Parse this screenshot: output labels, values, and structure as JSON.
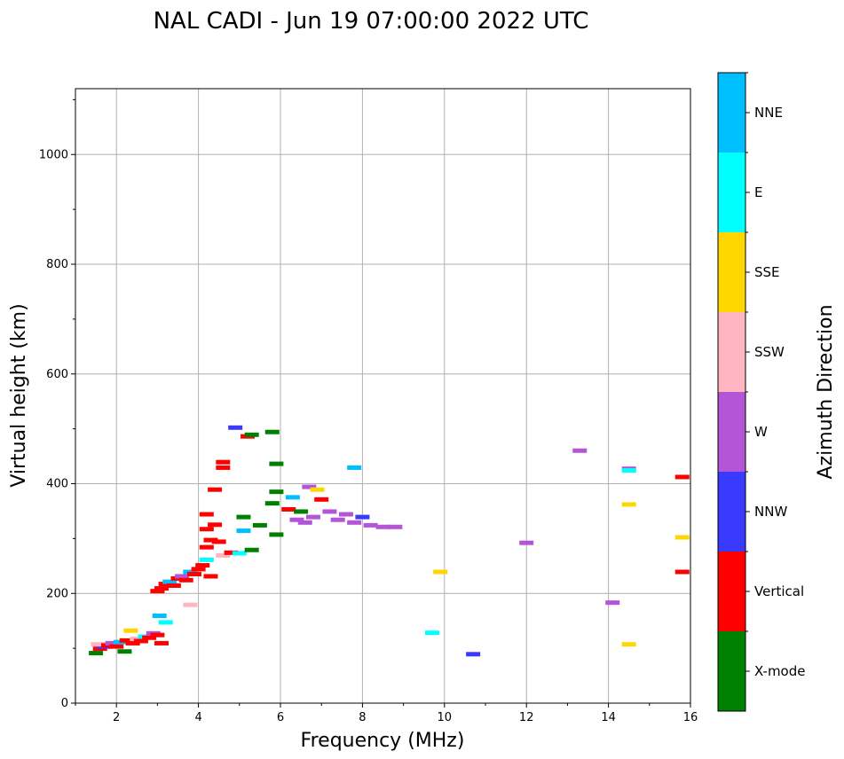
{
  "chart_data": {
    "type": "scatter",
    "title": "NAL CADI - Jun 19 07:00:00 2022 UTC",
    "xlabel": "Frequency (MHz)",
    "ylabel": "Virtual height (km)",
    "xlim": [
      1,
      16
    ],
    "ylim": [
      0,
      1120
    ],
    "xticks": [
      2,
      4,
      6,
      8,
      10,
      12,
      14,
      16
    ],
    "yticks": [
      0,
      200,
      400,
      600,
      800,
      1000
    ],
    "grid": true,
    "colorbar": {
      "label": "Azimuth Direction",
      "categories": [
        {
          "name": "X-mode",
          "color": "#008000"
        },
        {
          "name": "Vertical",
          "color": "#ff0000"
        },
        {
          "name": "NNW",
          "color": "#3a3aff"
        },
        {
          "name": "W",
          "color": "#b455d8"
        },
        {
          "name": "SSW",
          "color": "#ffb6c1"
        },
        {
          "name": "SSE",
          "color": "#ffd700"
        },
        {
          "name": "E",
          "color": "#00ffff"
        },
        {
          "name": "NNE",
          "color": "#00bfff"
        }
      ]
    },
    "points": [
      {
        "f": 1.5,
        "h": 92,
        "c": "X-mode"
      },
      {
        "f": 1.6,
        "h": 100,
        "c": "Vertical"
      },
      {
        "f": 1.7,
        "h": 104,
        "c": "NNW"
      },
      {
        "f": 1.55,
        "h": 108,
        "c": "SSW"
      },
      {
        "f": 1.8,
        "h": 106,
        "c": "Vertical"
      },
      {
        "f": 1.9,
        "h": 110,
        "c": "W"
      },
      {
        "f": 2.0,
        "h": 104,
        "c": "Vertical"
      },
      {
        "f": 2.1,
        "h": 112,
        "c": "NNE"
      },
      {
        "f": 2.2,
        "h": 95,
        "c": "X-mode"
      },
      {
        "f": 2.25,
        "h": 115,
        "c": "Vertical"
      },
      {
        "f": 2.35,
        "h": 133,
        "c": "SSE"
      },
      {
        "f": 2.4,
        "h": 110,
        "c": "Vertical"
      },
      {
        "f": 2.5,
        "h": 118,
        "c": "SSW"
      },
      {
        "f": 2.6,
        "h": 114,
        "c": "Vertical"
      },
      {
        "f": 2.7,
        "h": 122,
        "c": "E"
      },
      {
        "f": 2.8,
        "h": 120,
        "c": "Vertical"
      },
      {
        "f": 2.9,
        "h": 128,
        "c": "W"
      },
      {
        "f": 3.0,
        "h": 125,
        "c": "Vertical"
      },
      {
        "f": 3.05,
        "h": 160,
        "c": "NNE"
      },
      {
        "f": 3.1,
        "h": 110,
        "c": "Vertical"
      },
      {
        "f": 3.2,
        "h": 148,
        "c": "E"
      },
      {
        "f": 3.0,
        "h": 205,
        "c": "Vertical"
      },
      {
        "f": 3.1,
        "h": 210,
        "c": "Vertical"
      },
      {
        "f": 3.2,
        "h": 218,
        "c": "Vertical"
      },
      {
        "f": 3.3,
        "h": 222,
        "c": "NNE"
      },
      {
        "f": 3.4,
        "h": 215,
        "c": "Vertical"
      },
      {
        "f": 3.5,
        "h": 228,
        "c": "Vertical"
      },
      {
        "f": 3.6,
        "h": 232,
        "c": "W"
      },
      {
        "f": 3.7,
        "h": 225,
        "c": "Vertical"
      },
      {
        "f": 3.8,
        "h": 240,
        "c": "NNE"
      },
      {
        "f": 3.9,
        "h": 236,
        "c": "Vertical"
      },
      {
        "f": 4.0,
        "h": 245,
        "c": "Vertical"
      },
      {
        "f": 4.1,
        "h": 252,
        "c": "Vertical"
      },
      {
        "f": 3.8,
        "h": 180,
        "c": "SSW"
      },
      {
        "f": 4.2,
        "h": 262,
        "c": "E"
      },
      {
        "f": 4.3,
        "h": 232,
        "c": "Vertical"
      },
      {
        "f": 4.2,
        "h": 285,
        "c": "Vertical"
      },
      {
        "f": 4.3,
        "h": 298,
        "c": "Vertical"
      },
      {
        "f": 4.2,
        "h": 318,
        "c": "Vertical"
      },
      {
        "f": 4.4,
        "h": 326,
        "c": "Vertical"
      },
      {
        "f": 4.5,
        "h": 295,
        "c": "Vertical"
      },
      {
        "f": 4.6,
        "h": 270,
        "c": "SSW"
      },
      {
        "f": 4.2,
        "h": 345,
        "c": "Vertical"
      },
      {
        "f": 4.4,
        "h": 390,
        "c": "Vertical"
      },
      {
        "f": 4.6,
        "h": 440,
        "c": "Vertical"
      },
      {
        "f": 4.6,
        "h": 430,
        "c": "Vertical"
      },
      {
        "f": 4.8,
        "h": 275,
        "c": "Vertical"
      },
      {
        "f": 5.0,
        "h": 274,
        "c": "E"
      },
      {
        "f": 5.1,
        "h": 315,
        "c": "NNE"
      },
      {
        "f": 5.1,
        "h": 340,
        "c": "X-mode"
      },
      {
        "f": 4.9,
        "h": 503,
        "c": "NNW"
      },
      {
        "f": 5.2,
        "h": 487,
        "c": "Vertical"
      },
      {
        "f": 5.3,
        "h": 490,
        "c": "X-mode"
      },
      {
        "f": 5.5,
        "h": 325,
        "c": "X-mode"
      },
      {
        "f": 5.3,
        "h": 280,
        "c": "X-mode"
      },
      {
        "f": 5.8,
        "h": 495,
        "c": "X-mode"
      },
      {
        "f": 5.9,
        "h": 437,
        "c": "X-mode"
      },
      {
        "f": 5.8,
        "h": 365,
        "c": "X-mode"
      },
      {
        "f": 5.9,
        "h": 386,
        "c": "X-mode"
      },
      {
        "f": 5.9,
        "h": 308,
        "c": "X-mode"
      },
      {
        "f": 6.2,
        "h": 354,
        "c": "Vertical"
      },
      {
        "f": 6.3,
        "h": 376,
        "c": "NNE"
      },
      {
        "f": 6.5,
        "h": 350,
        "c": "X-mode"
      },
      {
        "f": 6.4,
        "h": 335,
        "c": "W"
      },
      {
        "f": 6.6,
        "h": 330,
        "c": "W"
      },
      {
        "f": 6.7,
        "h": 395,
        "c": "W"
      },
      {
        "f": 6.9,
        "h": 390,
        "c": "SSE"
      },
      {
        "f": 6.8,
        "h": 340,
        "c": "W"
      },
      {
        "f": 7.0,
        "h": 372,
        "c": "Vertical"
      },
      {
        "f": 7.2,
        "h": 350,
        "c": "W"
      },
      {
        "f": 7.4,
        "h": 335,
        "c": "W"
      },
      {
        "f": 7.6,
        "h": 345,
        "c": "W"
      },
      {
        "f": 7.8,
        "h": 330,
        "c": "W"
      },
      {
        "f": 8.0,
        "h": 340,
        "c": "NNW"
      },
      {
        "f": 8.2,
        "h": 325,
        "c": "W"
      },
      {
        "f": 8.5,
        "h": 322,
        "c": "W"
      },
      {
        "f": 8.8,
        "h": 322,
        "c": "W"
      },
      {
        "f": 7.8,
        "h": 430,
        "c": "NNE"
      },
      {
        "f": 9.9,
        "h": 240,
        "c": "SSE"
      },
      {
        "f": 9.7,
        "h": 129,
        "c": "E"
      },
      {
        "f": 10.7,
        "h": 90,
        "c": "NNW"
      },
      {
        "f": 12.0,
        "h": 293,
        "c": "W"
      },
      {
        "f": 13.3,
        "h": 461,
        "c": "W"
      },
      {
        "f": 14.1,
        "h": 184,
        "c": "W"
      },
      {
        "f": 14.5,
        "h": 428,
        "c": "W"
      },
      {
        "f": 14.5,
        "h": 425,
        "c": "E"
      },
      {
        "f": 14.5,
        "h": 363,
        "c": "SSE"
      },
      {
        "f": 14.5,
        "h": 108,
        "c": "SSE"
      },
      {
        "f": 15.8,
        "h": 413,
        "c": "Vertical"
      },
      {
        "f": 15.8,
        "h": 303,
        "c": "SSE"
      },
      {
        "f": 15.8,
        "h": 240,
        "c": "Vertical"
      }
    ]
  }
}
